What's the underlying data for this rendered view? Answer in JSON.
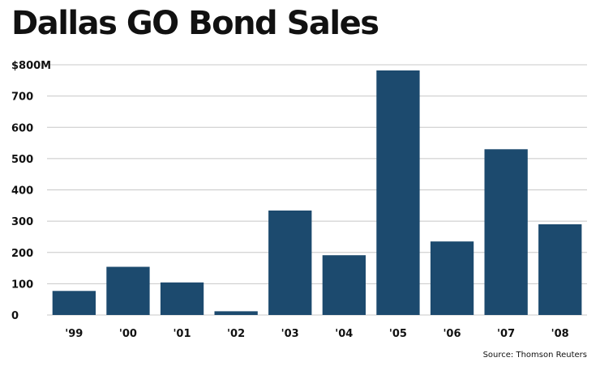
{
  "chart_data": {
    "type": "bar",
    "title": "Dallas GO Bond Sales",
    "categories": [
      "'99",
      "'00",
      "'01",
      "'02",
      "'03",
      "'04",
      "'05",
      "'06",
      "'07",
      "'08"
    ],
    "values": [
      77,
      154,
      104,
      12,
      334,
      191,
      782,
      235,
      530,
      290
    ],
    "y_ticks": [
      {
        "value": 0,
        "label": "0"
      },
      {
        "value": 100,
        "label": "100"
      },
      {
        "value": 200,
        "label": "200"
      },
      {
        "value": 300,
        "label": "300"
      },
      {
        "value": 400,
        "label": "400"
      },
      {
        "value": 500,
        "label": "500"
      },
      {
        "value": 600,
        "label": "600"
      },
      {
        "value": 700,
        "label": "700"
      },
      {
        "value": 800,
        "label": "$800M"
      }
    ],
    "ylim": [
      0,
      800
    ],
    "grid": true,
    "xlabel": "",
    "ylabel": "",
    "source": "Source: Thomson Reuters",
    "colors": {
      "bar": "#1c4a6e",
      "grid": "#c8c8c8",
      "text": "#111111"
    }
  }
}
